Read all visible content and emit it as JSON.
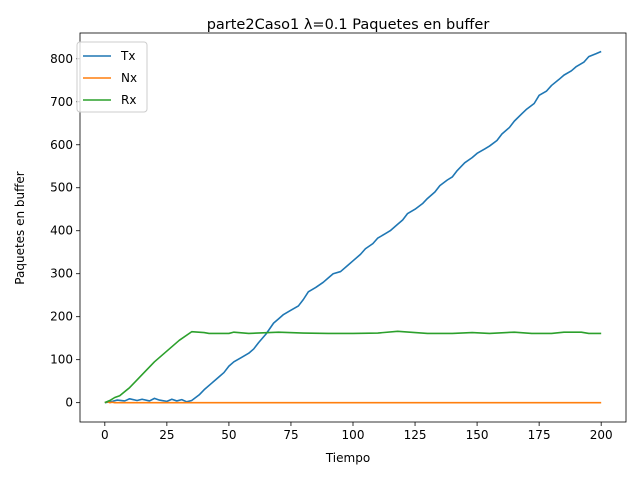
{
  "chart_data": {
    "type": "line",
    "title": "parte2Caso1 λ=0.1 Paquetes en buffer",
    "xlabel": "Tiempo",
    "ylabel": "Paquetes en buffer",
    "xlim": [
      -10,
      210
    ],
    "ylim": [
      -45,
      860
    ],
    "xticks": [
      0,
      25,
      50,
      75,
      100,
      125,
      150,
      175,
      200
    ],
    "yticks": [
      0,
      100,
      200,
      300,
      400,
      500,
      600,
      700,
      800
    ],
    "grid": false,
    "legend_position": "top-left",
    "series": [
      {
        "name": "Tx",
        "color": "#1f77b4",
        "points": [
          [
            0,
            0
          ],
          [
            3,
            3
          ],
          [
            5,
            6
          ],
          [
            8,
            4
          ],
          [
            10,
            9
          ],
          [
            13,
            5
          ],
          [
            15,
            8
          ],
          [
            18,
            4
          ],
          [
            20,
            10
          ],
          [
            22,
            6
          ],
          [
            25,
            3
          ],
          [
            27,
            8
          ],
          [
            29,
            4
          ],
          [
            31,
            7
          ],
          [
            33,
            2
          ],
          [
            35,
            5
          ],
          [
            38,
            18
          ],
          [
            40,
            30
          ],
          [
            43,
            45
          ],
          [
            46,
            60
          ],
          [
            48,
            70
          ],
          [
            50,
            85
          ],
          [
            52,
            95
          ],
          [
            55,
            105
          ],
          [
            58,
            115
          ],
          [
            60,
            125
          ],
          [
            62,
            140
          ],
          [
            65,
            160
          ],
          [
            68,
            185
          ],
          [
            70,
            195
          ],
          [
            72,
            205
          ],
          [
            75,
            215
          ],
          [
            78,
            225
          ],
          [
            80,
            240
          ],
          [
            82,
            258
          ],
          [
            85,
            268
          ],
          [
            88,
            280
          ],
          [
            90,
            290
          ],
          [
            92,
            300
          ],
          [
            95,
            305
          ],
          [
            98,
            320
          ],
          [
            100,
            330
          ],
          [
            103,
            345
          ],
          [
            105,
            358
          ],
          [
            108,
            370
          ],
          [
            110,
            383
          ],
          [
            113,
            393
          ],
          [
            115,
            400
          ],
          [
            118,
            415
          ],
          [
            120,
            425
          ],
          [
            122,
            440
          ],
          [
            125,
            450
          ],
          [
            128,
            463
          ],
          [
            130,
            475
          ],
          [
            133,
            490
          ],
          [
            135,
            505
          ],
          [
            138,
            518
          ],
          [
            140,
            525
          ],
          [
            142,
            540
          ],
          [
            145,
            558
          ],
          [
            148,
            570
          ],
          [
            150,
            580
          ],
          [
            153,
            590
          ],
          [
            155,
            597
          ],
          [
            158,
            610
          ],
          [
            160,
            625
          ],
          [
            163,
            640
          ],
          [
            165,
            655
          ],
          [
            168,
            672
          ],
          [
            170,
            683
          ],
          [
            173,
            696
          ],
          [
            175,
            715
          ],
          [
            178,
            725
          ],
          [
            180,
            738
          ],
          [
            183,
            752
          ],
          [
            185,
            762
          ],
          [
            188,
            772
          ],
          [
            190,
            782
          ],
          [
            193,
            792
          ],
          [
            195,
            805
          ],
          [
            198,
            812
          ],
          [
            200,
            817
          ]
        ]
      },
      {
        "name": "Nx",
        "color": "#ff7f0e",
        "points": [
          [
            0,
            0
          ],
          [
            1,
            2
          ],
          [
            2,
            0
          ],
          [
            3,
            1
          ],
          [
            4,
            0
          ],
          [
            200,
            0
          ]
        ]
      },
      {
        "name": "Rx",
        "color": "#2ca02c",
        "points": [
          [
            0,
            0
          ],
          [
            2,
            5
          ],
          [
            4,
            12
          ],
          [
            6,
            16
          ],
          [
            10,
            35
          ],
          [
            15,
            65
          ],
          [
            20,
            95
          ],
          [
            25,
            120
          ],
          [
            30,
            145
          ],
          [
            35,
            165
          ],
          [
            40,
            163
          ],
          [
            42,
            161
          ],
          [
            50,
            161
          ],
          [
            52,
            164
          ],
          [
            58,
            161
          ],
          [
            70,
            164
          ],
          [
            80,
            162
          ],
          [
            90,
            161
          ],
          [
            100,
            161
          ],
          [
            110,
            162
          ],
          [
            118,
            166
          ],
          [
            125,
            163
          ],
          [
            130,
            161
          ],
          [
            140,
            161
          ],
          [
            148,
            163
          ],
          [
            155,
            161
          ],
          [
            165,
            164
          ],
          [
            172,
            161
          ],
          [
            180,
            161
          ],
          [
            185,
            164
          ],
          [
            192,
            164
          ],
          [
            195,
            161
          ],
          [
            200,
            161
          ]
        ]
      }
    ]
  }
}
